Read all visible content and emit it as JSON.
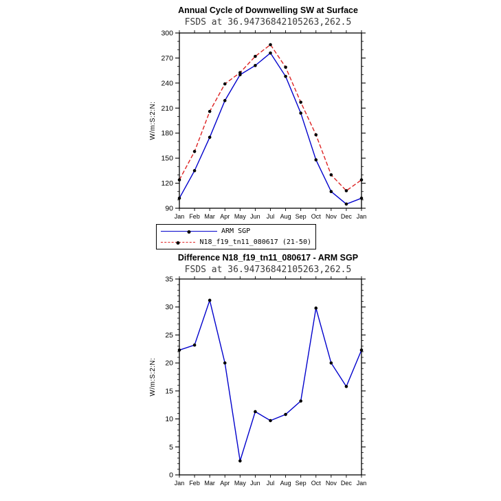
{
  "page": {
    "background": "#ffffff"
  },
  "colors": {
    "arm_sgp_line": "#0000cc",
    "model_line": "#dd2222",
    "marker": "#000000",
    "axis": "#000000",
    "subtitle_text": "#3a3a3a"
  },
  "legend": {
    "items": [
      {
        "label": "ARM SGP",
        "color": "#0000cc",
        "dash": "solid"
      },
      {
        "label": "N18_f19_tn11_080617 (21-50)",
        "color": "#dd2222",
        "dash": "dashed"
      }
    ]
  },
  "chart_data": [
    {
      "type": "line",
      "title": "Annual Cycle of Downwelling SW at Surface",
      "subtitle": "FSDS at 36.94736842105263,262.5",
      "ylabel": "W/m:S:2:N:",
      "xlabel": "",
      "categories": [
        "Jan",
        "Feb",
        "Mar",
        "Apr",
        "May",
        "Jun",
        "Jul",
        "Aug",
        "Sep",
        "Oct",
        "Nov",
        "Dec",
        "Jan"
      ],
      "ylim": [
        90,
        300
      ],
      "ytick": 30,
      "yminor": 3,
      "grid": false,
      "legend_position": "below",
      "series": [
        {
          "name": "ARM SGP",
          "color": "#0000cc",
          "dash": "solid",
          "values": [
            102,
            135,
            175,
            219,
            250,
            261,
            276,
            248,
            204,
            148,
            110,
            95,
            102
          ]
        },
        {
          "name": "N18_f19_tn11_080617 (21-50)",
          "color": "#dd2222",
          "dash": "dashed",
          "values": [
            124,
            158,
            206,
            239,
            252.5,
            272,
            286,
            259,
            217,
            178,
            130,
            111,
            124
          ]
        }
      ]
    },
    {
      "type": "line",
      "title": "Difference N18_f19_tn11_080617 - ARM SGP",
      "subtitle": "FSDS at 36.94736842105263,262.5",
      "ylabel": "W/m:S:2:N:",
      "xlabel": "",
      "categories": [
        "Jan",
        "Feb",
        "Mar",
        "Apr",
        "May",
        "Jun",
        "Jul",
        "Aug",
        "Sep",
        "Oct",
        "Nov",
        "Dec",
        "Jan"
      ],
      "ylim": [
        0,
        35
      ],
      "ytick": 5,
      "yminor": 5,
      "grid": false,
      "legend_position": "none",
      "series": [
        {
          "name": "Difference",
          "color": "#0000cc",
          "dash": "solid",
          "values": [
            22.3,
            23.2,
            31.2,
            20.0,
            2.5,
            11.3,
            9.7,
            10.8,
            13.2,
            29.8,
            20.0,
            15.8,
            22.3
          ]
        }
      ]
    }
  ]
}
